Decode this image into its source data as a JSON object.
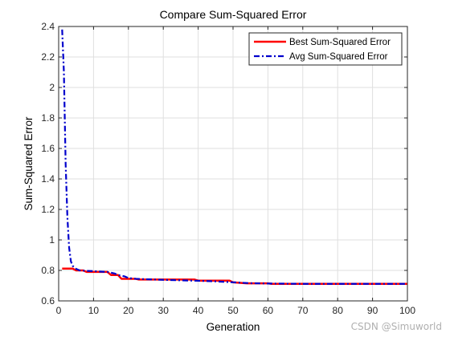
{
  "chart_data": {
    "type": "line",
    "title": "Compare Sum-Squared Error",
    "xlabel": "Generation",
    "ylabel": "Sum-Squared Error",
    "xlim": [
      0,
      100
    ],
    "ylim": [
      0.6,
      2.4
    ],
    "xticks": [
      0,
      10,
      20,
      30,
      40,
      50,
      60,
      70,
      80,
      90,
      100
    ],
    "yticks": [
      0.6,
      0.8,
      1,
      1.2,
      1.4,
      1.6,
      1.8,
      2,
      2.2,
      2.4
    ],
    "grid": true,
    "legend_position": "top-right",
    "series": [
      {
        "name": "Best Sum-Squared Error",
        "color": "#ff0000",
        "style": "solid",
        "x": [
          1,
          4,
          5,
          7,
          8,
          14,
          15,
          17,
          18,
          19,
          22,
          23,
          39,
          40,
          49,
          50,
          54,
          60,
          61,
          100
        ],
        "y": [
          0.812,
          0.812,
          0.8,
          0.8,
          0.79,
          0.79,
          0.77,
          0.77,
          0.745,
          0.745,
          0.745,
          0.74,
          0.74,
          0.733,
          0.733,
          0.722,
          0.715,
          0.715,
          0.712,
          0.712
        ]
      },
      {
        "name": "Avg Sum-Squared Error",
        "color": "#0000cc",
        "style": "dashdot",
        "x": [
          1,
          1.5,
          2,
          2.5,
          3,
          3.5,
          4,
          4.5,
          5,
          6,
          8,
          10,
          12,
          14,
          15,
          16,
          17,
          18,
          19,
          20,
          22,
          25,
          30,
          35,
          40,
          45,
          50,
          55,
          60,
          65,
          70,
          80,
          90,
          100
        ],
        "y": [
          2.38,
          2.1,
          1.5,
          1.15,
          0.95,
          0.86,
          0.83,
          0.82,
          0.81,
          0.8,
          0.797,
          0.795,
          0.792,
          0.79,
          0.785,
          0.78,
          0.77,
          0.765,
          0.76,
          0.75,
          0.745,
          0.742,
          0.738,
          0.735,
          0.732,
          0.728,
          0.722,
          0.716,
          0.714,
          0.713,
          0.712,
          0.712,
          0.712,
          0.712
        ]
      }
    ]
  },
  "watermark": "CSDN @Simuworld",
  "colors": {
    "axis": "#262626",
    "grid": "#dfdfdf",
    "best": "#ff0000",
    "avg": "#0000cc"
  }
}
